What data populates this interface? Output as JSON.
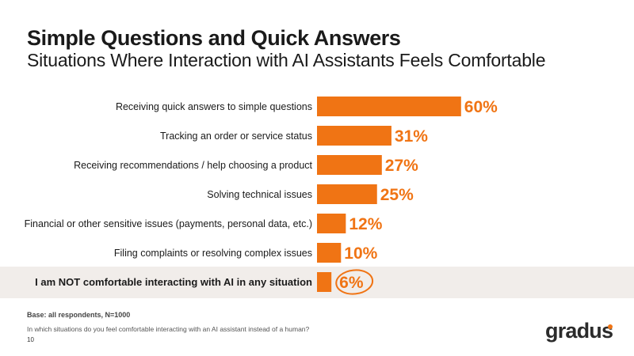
{
  "header": {
    "title": "Simple Questions and Quick Answers",
    "subtitle": "Situations Where Interaction with AI Assistants Feels Comfortable"
  },
  "chart_data": {
    "type": "bar",
    "orientation": "horizontal",
    "categories": [
      "Receiving quick answers to simple questions",
      "Tracking an order or service status",
      "Receiving recommendations / help choosing a product",
      "Solving technical issues",
      "Financial or other sensitive issues (payments, personal data, etc.)",
      "Filing complaints or resolving complex issues",
      "I am NOT comfortable interacting with AI in any situation"
    ],
    "values": [
      60,
      31,
      27,
      25,
      12,
      10,
      6
    ],
    "value_labels": [
      "60%",
      "31%",
      "27%",
      "25%",
      "12%",
      "10%",
      "6%"
    ],
    "unit": "%",
    "highlighted_category_index": 6,
    "bar_color": "#f07414",
    "label_color": "#f07414",
    "highlight_band_color": "#f1edea"
  },
  "footer": {
    "base": "Base: all respondents, N=1000",
    "question": "In which situations do you feel comfortable interacting with an AI assistant instead of a human?",
    "page_number": "10"
  },
  "brand": {
    "logo_text": "gradus",
    "accent_color": "#f07414"
  }
}
